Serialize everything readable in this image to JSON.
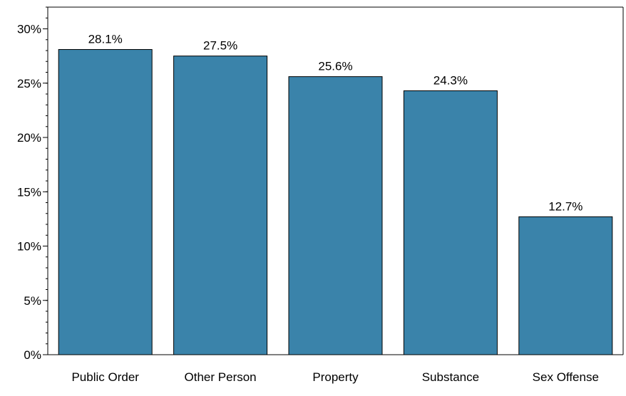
{
  "chart_data": {
    "type": "bar",
    "title": "",
    "xlabel": "",
    "ylabel": "",
    "categories": [
      "Public Order",
      "Other Person",
      "Property",
      "Substance",
      "Sex Offense"
    ],
    "values": [
      28.1,
      27.5,
      25.6,
      24.3,
      12.7
    ],
    "data_labels": [
      "28.1%",
      "27.5%",
      "25.6%",
      "24.3%",
      "12.7%"
    ],
    "ylim": [
      0,
      32
    ],
    "yticks": [
      0,
      5,
      10,
      15,
      20,
      25,
      30
    ],
    "ytick_labels": [
      "0%",
      "5%",
      "10%",
      "15%",
      "20%",
      "25%",
      "30%"
    ],
    "grid": false,
    "legend": "none",
    "bar_color": "#3a83aa",
    "bar_edge_color": "#000000"
  }
}
